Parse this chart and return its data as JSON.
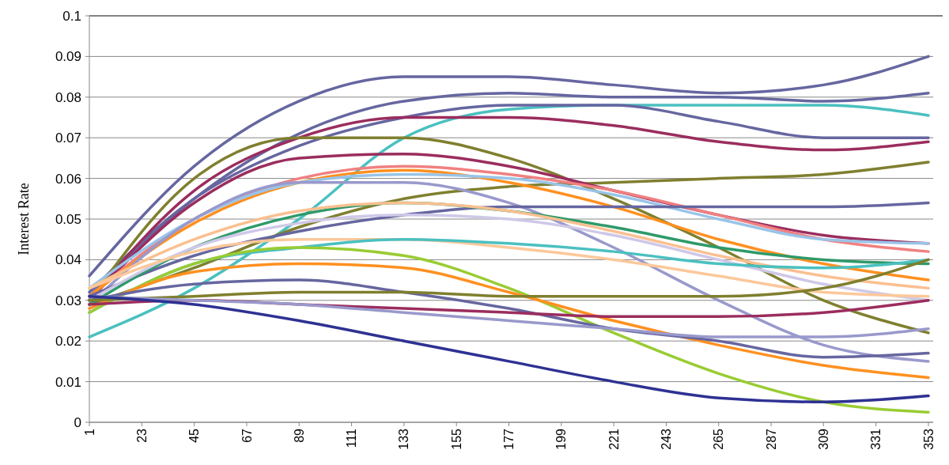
{
  "chart_data": {
    "type": "line",
    "ylabel": "Interest Rate",
    "x": [
      1,
      45,
      89,
      133,
      177,
      221,
      265,
      309,
      353
    ],
    "xlim": [
      1,
      355
    ],
    "xticks": [
      1,
      23,
      45,
      67,
      89,
      111,
      133,
      155,
      177,
      199,
      221,
      243,
      265,
      287,
      309,
      331,
      353
    ],
    "ylim": [
      0,
      0.1
    ],
    "yticks": [
      0,
      0.01,
      0.02,
      0.03,
      0.04,
      0.05,
      0.06,
      0.07,
      0.08,
      0.09,
      0.1
    ],
    "grid": "y",
    "marker": "none",
    "line_style": "solid",
    "series": [
      {
        "color": "#6666a0",
        "values": [
          0.036,
          0.063,
          0.079,
          0.085,
          0.085,
          0.083,
          0.081,
          0.083,
          0.09
        ]
      },
      {
        "color": "#6666a0",
        "values": [
          0.031,
          0.055,
          0.071,
          0.079,
          0.081,
          0.08,
          0.08,
          0.079,
          0.081
        ]
      },
      {
        "color": "#4bc0c0",
        "values": [
          0.021,
          0.033,
          0.05,
          0.07,
          0.077,
          0.078,
          0.078,
          0.078,
          0.0755
        ]
      },
      {
        "color": "#6666a0",
        "values": [
          0.032,
          0.055,
          0.068,
          0.075,
          0.078,
          0.078,
          0.074,
          0.07,
          0.07
        ]
      },
      {
        "color": "#9b2d5e",
        "values": [
          0.03,
          0.057,
          0.07,
          0.075,
          0.075,
          0.073,
          0.069,
          0.067,
          0.069
        ]
      },
      {
        "color": "#7f7f2f",
        "values": [
          0.03,
          0.06,
          0.07,
          0.07,
          0.065,
          0.055,
          0.043,
          0.03,
          0.022
        ]
      },
      {
        "color": "#7f7f2f",
        "values": [
          0.029,
          0.038,
          0.048,
          0.055,
          0.058,
          0.059,
          0.06,
          0.061,
          0.064
        ]
      },
      {
        "color": "#9b2d5e",
        "values": [
          0.03,
          0.054,
          0.065,
          0.066,
          0.063,
          0.057,
          0.051,
          0.046,
          0.044
        ]
      },
      {
        "color": "#f08080",
        "values": [
          0.031,
          0.05,
          0.06,
          0.063,
          0.061,
          0.057,
          0.051,
          0.045,
          0.042
        ]
      },
      {
        "color": "#ff9020",
        "values": [
          0.031,
          0.049,
          0.059,
          0.062,
          0.059,
          0.053,
          0.045,
          0.039,
          0.035
        ]
      },
      {
        "color": "#99c4e8",
        "values": [
          0.033,
          0.05,
          0.059,
          0.061,
          0.06,
          0.056,
          0.05,
          0.045,
          0.044
        ]
      },
      {
        "color": "#9999cc",
        "values": [
          0.029,
          0.05,
          0.059,
          0.059,
          0.054,
          0.043,
          0.03,
          0.019,
          0.015
        ]
      },
      {
        "color": "#6666a0",
        "values": [
          0.031,
          0.041,
          0.047,
          0.051,
          0.053,
          0.053,
          0.053,
          0.053,
          0.054
        ]
      },
      {
        "color": "#2e9a6a",
        "values": [
          0.029,
          0.043,
          0.051,
          0.054,
          0.052,
          0.048,
          0.043,
          0.04,
          0.039
        ]
      },
      {
        "color": "#fac090",
        "values": [
          0.033,
          0.045,
          0.052,
          0.054,
          0.052,
          0.047,
          0.041,
          0.036,
          0.033
        ]
      },
      {
        "color": "#cfc8e8",
        "values": [
          0.03,
          0.043,
          0.049,
          0.051,
          0.05,
          0.046,
          0.04,
          0.034,
          0.03
        ]
      },
      {
        "color": "#fcc89a",
        "values": [
          0.033,
          0.042,
          0.045,
          0.045,
          0.043,
          0.04,
          0.036,
          0.032,
          0.031
        ]
      },
      {
        "color": "#4bc0c0",
        "values": [
          0.027,
          0.039,
          0.043,
          0.045,
          0.044,
          0.042,
          0.039,
          0.038,
          0.04
        ]
      },
      {
        "color": "#99cc33",
        "values": [
          0.027,
          0.039,
          0.043,
          0.041,
          0.033,
          0.022,
          0.012,
          0.005,
          0.0025
        ]
      },
      {
        "color": "#ff9020",
        "values": [
          0.028,
          0.037,
          0.039,
          0.038,
          0.032,
          0.025,
          0.019,
          0.014,
          0.011
        ]
      },
      {
        "color": "#6666a0",
        "values": [
          0.03,
          0.034,
          0.035,
          0.032,
          0.028,
          0.023,
          0.02,
          0.016,
          0.017
        ]
      },
      {
        "color": "#7f7f2f",
        "values": [
          0.03,
          0.031,
          0.032,
          0.032,
          0.031,
          0.031,
          0.031,
          0.033,
          0.04
        ]
      },
      {
        "color": "#9b2d5e",
        "values": [
          0.029,
          0.03,
          0.029,
          0.028,
          0.027,
          0.026,
          0.026,
          0.027,
          0.03
        ]
      },
      {
        "color": "#9999cc",
        "values": [
          0.031,
          0.03,
          0.029,
          0.027,
          0.025,
          0.023,
          0.021,
          0.021,
          0.023
        ]
      },
      {
        "color": "#2e3192",
        "values": [
          0.031,
          0.029,
          0.025,
          0.02,
          0.015,
          0.01,
          0.006,
          0.005,
          0.0065
        ]
      }
    ]
  }
}
